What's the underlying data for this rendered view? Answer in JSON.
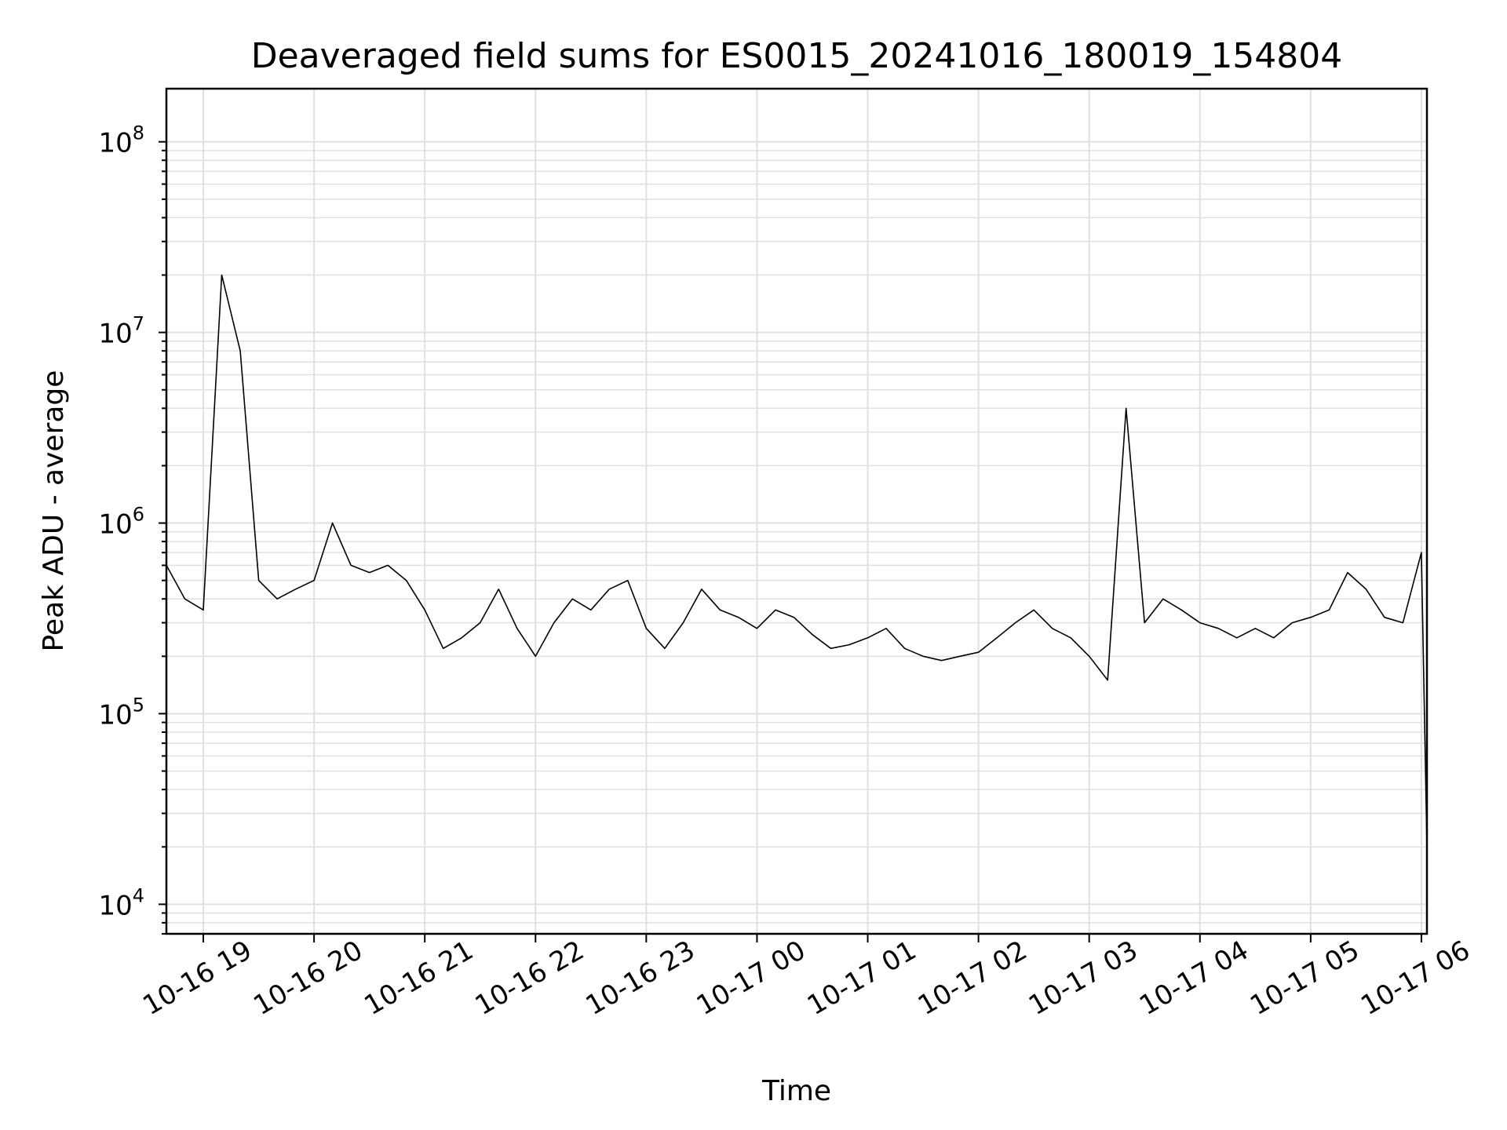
{
  "chart_data": {
    "type": "line",
    "title": "Deaveraged field sums for ES0015_20241016_180019_154804",
    "xlabel": "Time",
    "ylabel": "Peak ADU - average",
    "yscale": "log",
    "ylim": [
      7000,
      190000000
    ],
    "xlim": [
      "2024-10-16T18:40",
      "2024-10-17T06:03"
    ],
    "x_ticks": [
      "10-16 19",
      "10-16 20",
      "10-16 21",
      "10-16 22",
      "10-16 23",
      "10-17 00",
      "10-17 01",
      "10-17 02",
      "10-17 03",
      "10-17 04",
      "10-17 05",
      "10-17 06"
    ],
    "y_ticks": [
      {
        "value": 10000,
        "base": "10",
        "exp": "4"
      },
      {
        "value": 100000,
        "base": "10",
        "exp": "5"
      },
      {
        "value": 1000000,
        "base": "10",
        "exp": "6"
      },
      {
        "value": 10000000,
        "base": "10",
        "exp": "7"
      },
      {
        "value": 100000000,
        "base": "10",
        "exp": "8"
      }
    ],
    "grid": true,
    "line_color": "#000000",
    "grid_color": "#e0e0e0",
    "series": [
      {
        "x": [
          "2024-10-16T18:40",
          "2024-10-16T18:50",
          "2024-10-16T19:00",
          "2024-10-16T19:10",
          "2024-10-16T19:20",
          "2024-10-16T19:30",
          "2024-10-16T19:40",
          "2024-10-16T19:50",
          "2024-10-16T20:00",
          "2024-10-16T20:10",
          "2024-10-16T20:20",
          "2024-10-16T20:30",
          "2024-10-16T20:40",
          "2024-10-16T20:50",
          "2024-10-16T21:00",
          "2024-10-16T21:10",
          "2024-10-16T21:20",
          "2024-10-16T21:30",
          "2024-10-16T21:40",
          "2024-10-16T21:50",
          "2024-10-16T22:00",
          "2024-10-16T22:10",
          "2024-10-16T22:20",
          "2024-10-16T22:30",
          "2024-10-16T22:40",
          "2024-10-16T22:50",
          "2024-10-16T23:00",
          "2024-10-16T23:10",
          "2024-10-16T23:20",
          "2024-10-16T23:30",
          "2024-10-16T23:40",
          "2024-10-16T23:50",
          "2024-10-17T00:00",
          "2024-10-17T00:10",
          "2024-10-17T00:20",
          "2024-10-17T00:30",
          "2024-10-17T00:40",
          "2024-10-17T00:50",
          "2024-10-17T01:00",
          "2024-10-17T01:10",
          "2024-10-17T01:20",
          "2024-10-17T01:30",
          "2024-10-17T01:40",
          "2024-10-17T01:50",
          "2024-10-17T02:00",
          "2024-10-17T02:10",
          "2024-10-17T02:20",
          "2024-10-17T02:30",
          "2024-10-17T02:40",
          "2024-10-17T02:50",
          "2024-10-17T03:00",
          "2024-10-17T03:10",
          "2024-10-17T03:20",
          "2024-10-17T03:30",
          "2024-10-17T03:40",
          "2024-10-17T03:50",
          "2024-10-17T04:00",
          "2024-10-17T04:10",
          "2024-10-17T04:20",
          "2024-10-17T04:30",
          "2024-10-17T04:40",
          "2024-10-17T04:50",
          "2024-10-17T05:00",
          "2024-10-17T05:10",
          "2024-10-17T05:20",
          "2024-10-17T05:30",
          "2024-10-17T05:40",
          "2024-10-17T05:50",
          "2024-10-17T06:00",
          "2024-10-17T06:03"
        ],
        "values": [
          600000,
          400000,
          350000,
          20000000,
          8000000,
          500000,
          400000,
          450000,
          500000,
          1000000,
          600000,
          550000,
          600000,
          500000,
          350000,
          220000,
          250000,
          300000,
          450000,
          280000,
          200000,
          300000,
          400000,
          350000,
          450000,
          500000,
          280000,
          220000,
          300000,
          450000,
          350000,
          320000,
          280000,
          350000,
          320000,
          260000,
          220000,
          230000,
          250000,
          280000,
          220000,
          200000,
          190000,
          200000,
          210000,
          250000,
          300000,
          350000,
          280000,
          250000,
          200000,
          150000,
          4000000,
          300000,
          400000,
          350000,
          300000,
          280000,
          250000,
          280000,
          250000,
          300000,
          320000,
          350000,
          550000,
          450000,
          320000,
          300000,
          700000,
          20000
        ]
      }
    ]
  }
}
